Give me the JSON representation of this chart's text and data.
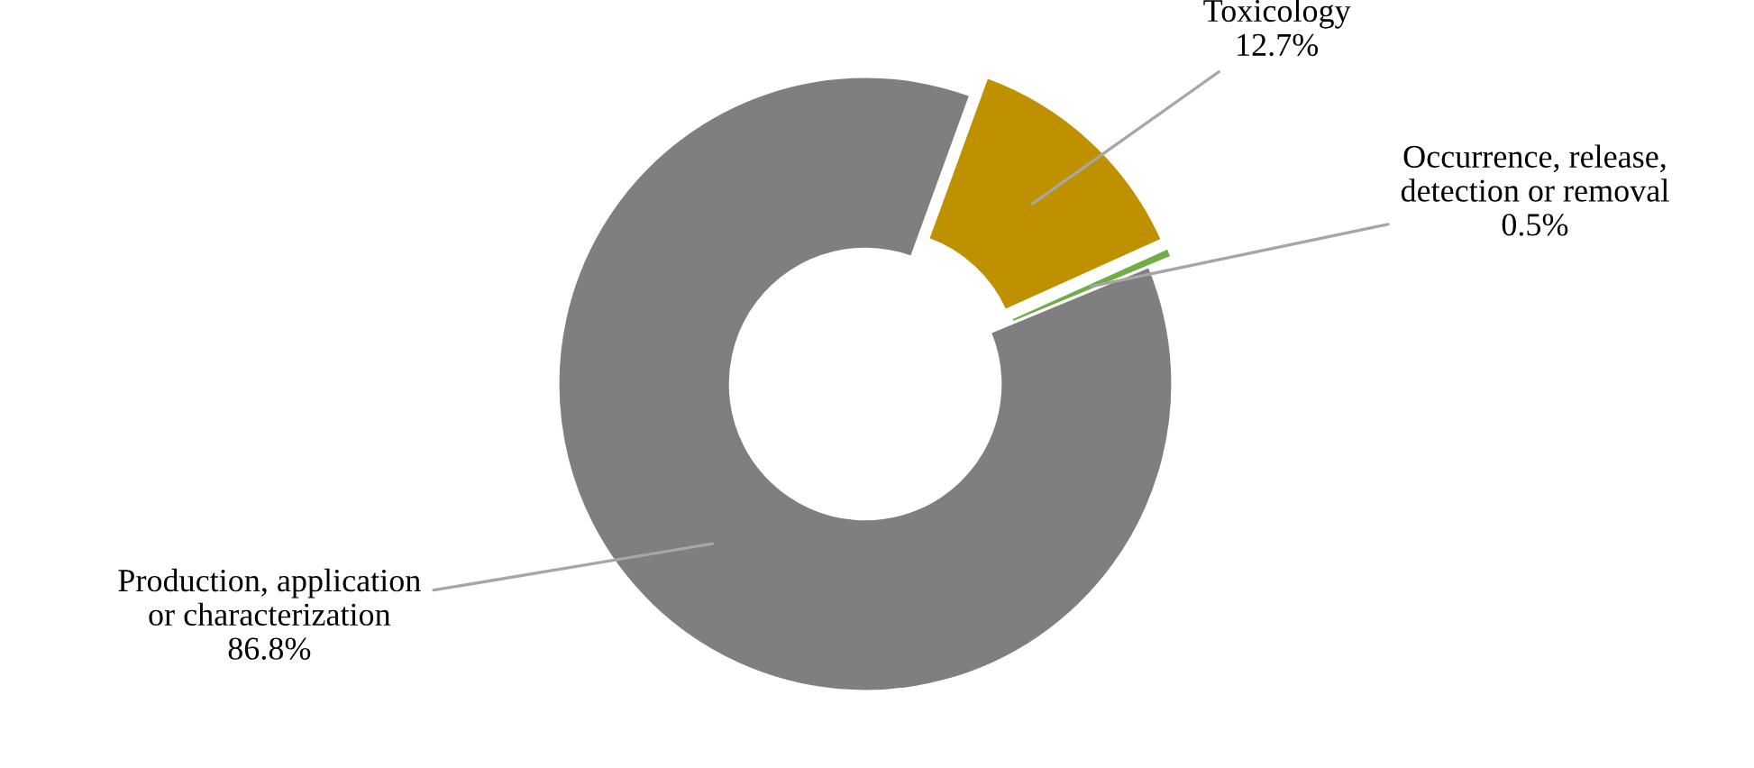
{
  "chart_data": {
    "type": "donut",
    "categories": [
      "Toxicology",
      "Occurrence, release,\ndetection or removal",
      "Production, application\nor characterization"
    ],
    "values": [
      12.7,
      0.5,
      86.8
    ],
    "colors": [
      "#bf9000",
      "#70ad47",
      "#7f7f7f"
    ],
    "value_labels": [
      "12.7%",
      "0.5%",
      "86.8%"
    ],
    "legend": false
  }
}
